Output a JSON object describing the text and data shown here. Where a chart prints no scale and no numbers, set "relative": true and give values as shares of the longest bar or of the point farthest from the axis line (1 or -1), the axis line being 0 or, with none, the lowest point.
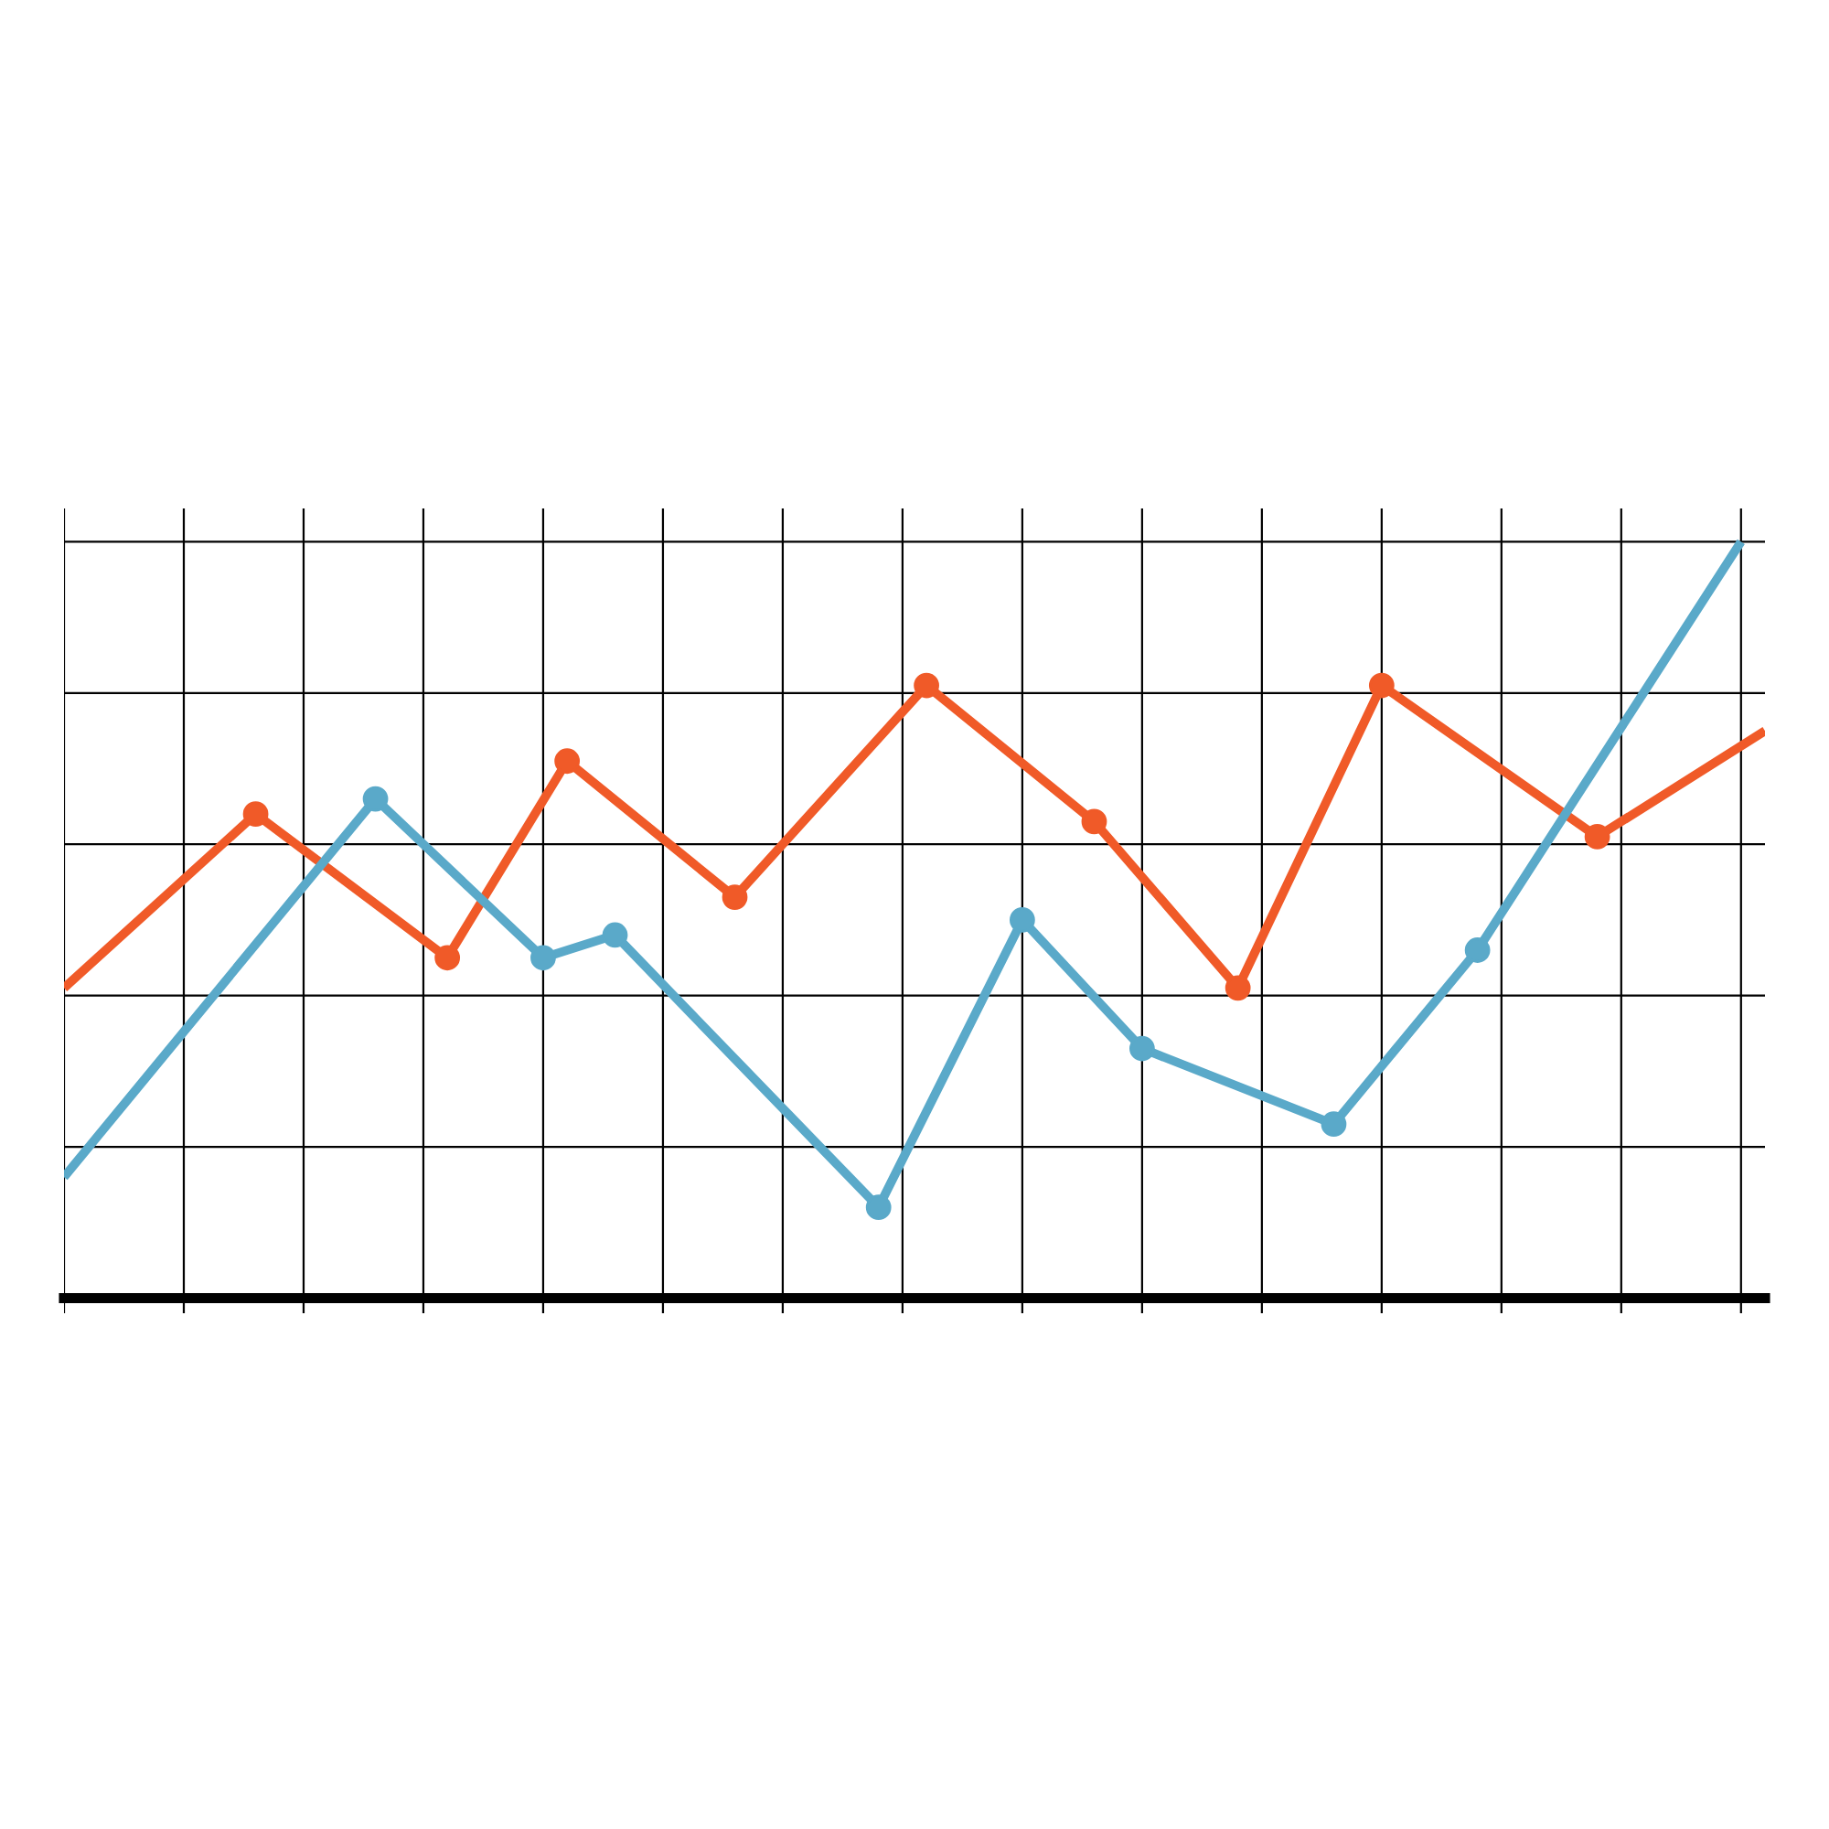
{
  "chart_data": {
    "type": "line",
    "relative": true,
    "marker": "circle",
    "line_style": "solid",
    "grid": true,
    "tick_labels": false,
    "categories": [
      null,
      null,
      null,
      null,
      null,
      null,
      null,
      null,
      null,
      null,
      null,
      null,
      null,
      null,
      null,
      null,
      null,
      null,
      null,
      null,
      null,
      null,
      null,
      null,
      null,
      null,
      null,
      null,
      null,
      null,
      null,
      null,
      null,
      null,
      null,
      null,
      null,
      null,
      null,
      null,
      null,
      null,
      null,
      null,
      null,
      null,
      null,
      null,
      null,
      null,
      null,
      null,
      null,
      null,
      null,
      null,
      null,
      null,
      null,
      null,
      null,
      null,
      null,
      null,
      null,
      null,
      null,
      null,
      null,
      null,
      null,
      null
    ],
    "series": [
      {
        "color": "#f05a28",
        "values": [
          0.41,
          null,
          null,
          null,
          null,
          null,
          null,
          null,
          0.64,
          null,
          null,
          null,
          null,
          null,
          null,
          null,
          0.45,
          null,
          null,
          null,
          null,
          0.71,
          null,
          null,
          null,
          null,
          null,
          null,
          0.53,
          null,
          null,
          null,
          null,
          null,
          null,
          null,
          0.81,
          null,
          null,
          null,
          null,
          null,
          null,
          0.63,
          null,
          null,
          null,
          null,
          null,
          0.41,
          null,
          null,
          null,
          null,
          null,
          0.81,
          null,
          null,
          null,
          null,
          null,
          null,
          null,
          null,
          0.61,
          null,
          null,
          null,
          null,
          null,
          null,
          0.75
        ]
      },
      {
        "color": "#5aa9c9",
        "values": [
          0.16,
          null,
          null,
          null,
          null,
          null,
          null,
          null,
          null,
          null,
          null,
          null,
          null,
          0.66,
          null,
          null,
          null,
          null,
          null,
          null,
          0.45,
          null,
          null,
          0.48,
          null,
          null,
          null,
          null,
          null,
          null,
          null,
          null,
          null,
          null,
          0.12,
          null,
          null,
          null,
          null,
          null,
          0.5,
          null,
          null,
          null,
          null,
          0.33,
          null,
          null,
          null,
          null,
          null,
          null,
          null,
          0.23,
          null,
          null,
          null,
          null,
          null,
          0.46,
          null,
          null,
          null,
          null,
          null,
          null,
          null,
          null,
          null,
          null,
          1.0,
          null
        ]
      }
    ]
  }
}
